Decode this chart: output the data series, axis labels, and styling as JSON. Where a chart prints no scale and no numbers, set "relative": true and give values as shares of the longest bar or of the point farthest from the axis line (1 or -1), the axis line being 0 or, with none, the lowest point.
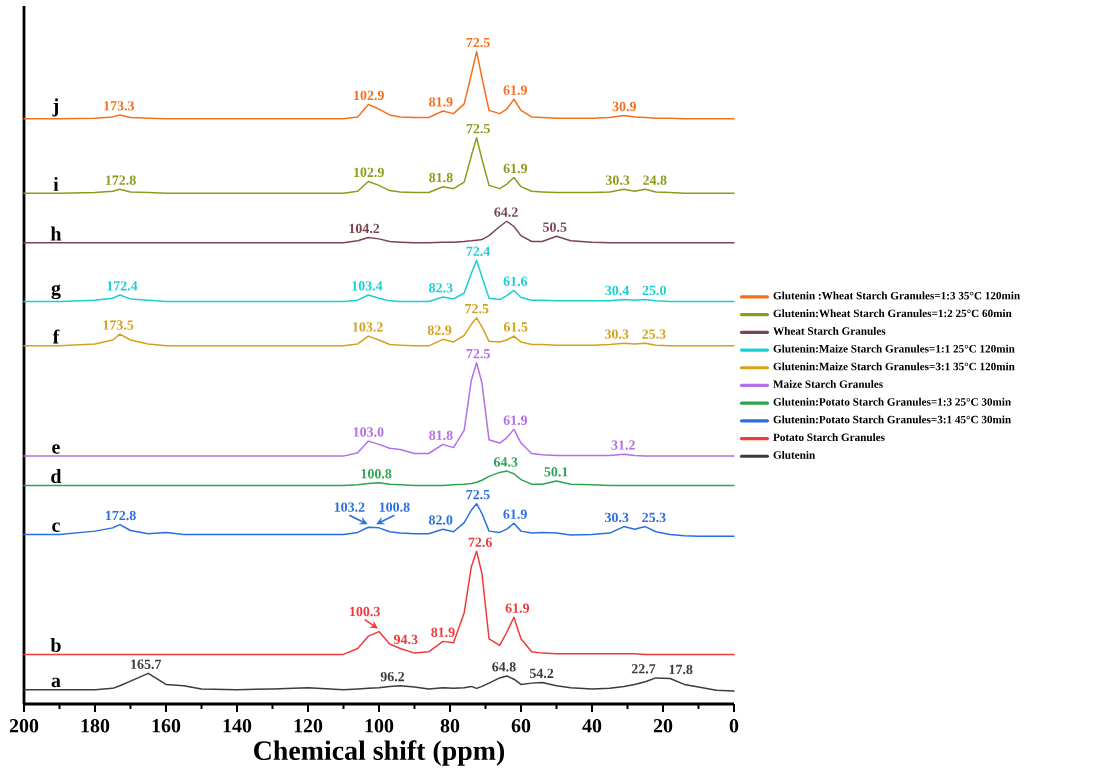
{
  "chart_data": {
    "type": "line",
    "relative": true,
    "tick_labels": "x",
    "legend": "right",
    "xlabel": "Chemical shift (ppm)",
    "xlim": [
      200,
      0
    ],
    "xticks": [
      200,
      180,
      160,
      140,
      120,
      100,
      80,
      60,
      40,
      20,
      0
    ],
    "x": [
      200,
      190,
      180,
      175,
      173,
      170,
      165,
      160,
      155,
      150,
      140,
      130,
      120,
      110,
      106,
      103,
      100,
      97,
      94,
      90,
      86,
      82,
      79,
      76,
      74,
      72.5,
      71,
      69,
      66,
      64,
      62,
      60,
      57,
      54,
      50,
      46,
      40,
      35,
      31,
      28,
      25,
      22,
      18,
      14,
      10,
      5,
      0
    ],
    "series": [
      {
        "name": "Glutenin :Wheat Starch Granules=1:3 35°C 120min",
        "color": "#f5701e",
        "values": [
          0.897,
          0.897,
          0.898,
          0.9,
          0.903,
          0.899,
          0.898,
          0.897,
          0.897,
          0.897,
          0.897,
          0.897,
          0.897,
          0.897,
          0.9,
          0.919,
          0.912,
          0.903,
          0.9,
          0.899,
          0.899,
          0.909,
          0.905,
          0.92,
          0.965,
          1.0,
          0.96,
          0.91,
          0.905,
          0.912,
          0.927,
          0.91,
          0.9,
          0.899,
          0.898,
          0.898,
          0.898,
          0.899,
          0.902,
          0.9,
          0.899,
          0.898,
          0.898,
          0.897,
          0.897,
          0.897,
          0.897
        ]
      },
      {
        "name": "Glutenin:Wheat Starch Granules=1:2 25°C  60min",
        "color": "#8f9a1c",
        "values": [
          0.783,
          0.783,
          0.784,
          0.786,
          0.789,
          0.785,
          0.784,
          0.783,
          0.783,
          0.783,
          0.783,
          0.783,
          0.783,
          0.783,
          0.786,
          0.801,
          0.795,
          0.787,
          0.785,
          0.784,
          0.784,
          0.793,
          0.79,
          0.8,
          0.84,
          0.868,
          0.835,
          0.795,
          0.79,
          0.797,
          0.807,
          0.793,
          0.786,
          0.785,
          0.784,
          0.784,
          0.784,
          0.785,
          0.789,
          0.786,
          0.789,
          0.785,
          0.784,
          0.783,
          0.783,
          0.783,
          0.783
        ]
      },
      {
        "name": "Wheat Starch Granules",
        "color": "#7a4450",
        "values": [
          0.707,
          0.707,
          0.707,
          0.707,
          0.707,
          0.707,
          0.707,
          0.707,
          0.707,
          0.707,
          0.707,
          0.707,
          0.707,
          0.707,
          0.71,
          0.715,
          0.713,
          0.709,
          0.708,
          0.707,
          0.707,
          0.708,
          0.708,
          0.709,
          0.71,
          0.711,
          0.712,
          0.718,
          0.732,
          0.74,
          0.732,
          0.718,
          0.709,
          0.709,
          0.717,
          0.71,
          0.708,
          0.707,
          0.707,
          0.707,
          0.707,
          0.707,
          0.707,
          0.707,
          0.707,
          0.707,
          0.707
        ]
      },
      {
        "name": "Glutenin:Maize Starch Granules=1:1 25°C  120min",
        "color": "#18cfd2",
        "values": [
          0.617,
          0.617,
          0.619,
          0.622,
          0.627,
          0.621,
          0.619,
          0.617,
          0.617,
          0.617,
          0.617,
          0.617,
          0.617,
          0.617,
          0.619,
          0.627,
          0.622,
          0.618,
          0.617,
          0.617,
          0.617,
          0.624,
          0.621,
          0.63,
          0.66,
          0.68,
          0.655,
          0.622,
          0.62,
          0.626,
          0.634,
          0.623,
          0.619,
          0.619,
          0.618,
          0.618,
          0.618,
          0.618,
          0.62,
          0.619,
          0.62,
          0.618,
          0.617,
          0.617,
          0.617,
          0.617,
          0.617
        ]
      },
      {
        "name": "Glutenin:Maize Starch Granules=3:1 35°C  120min",
        "color": "#d4a21a",
        "values": [
          0.549,
          0.549,
          0.552,
          0.558,
          0.567,
          0.558,
          0.552,
          0.549,
          0.549,
          0.549,
          0.549,
          0.549,
          0.549,
          0.549,
          0.552,
          0.564,
          0.558,
          0.551,
          0.55,
          0.549,
          0.549,
          0.559,
          0.555,
          0.565,
          0.582,
          0.592,
          0.578,
          0.556,
          0.555,
          0.558,
          0.564,
          0.555,
          0.551,
          0.551,
          0.55,
          0.55,
          0.55,
          0.551,
          0.553,
          0.552,
          0.553,
          0.55,
          0.549,
          0.549,
          0.549,
          0.549,
          0.549
        ]
      },
      {
        "name": "Maize Starch Granules",
        "color": "#b36ee8",
        "values": [
          0.38,
          0.38,
          0.38,
          0.38,
          0.38,
          0.38,
          0.38,
          0.38,
          0.38,
          0.38,
          0.38,
          0.38,
          0.38,
          0.38,
          0.385,
          0.403,
          0.398,
          0.392,
          0.39,
          0.384,
          0.384,
          0.398,
          0.393,
          0.42,
          0.496,
          0.523,
          0.492,
          0.405,
          0.4,
          0.408,
          0.421,
          0.4,
          0.384,
          0.382,
          0.381,
          0.381,
          0.381,
          0.381,
          0.383,
          0.381,
          0.38,
          0.38,
          0.38,
          0.38,
          0.38,
          0.38,
          0.38
        ]
      },
      {
        "name": "Glutenin:Potato Starch Granules=1:3 25°C 30min",
        "color": "#2ea44f",
        "values": [
          0.335,
          0.335,
          0.335,
          0.335,
          0.335,
          0.335,
          0.335,
          0.335,
          0.335,
          0.335,
          0.335,
          0.335,
          0.335,
          0.335,
          0.336,
          0.338,
          0.339,
          0.337,
          0.336,
          0.335,
          0.335,
          0.335,
          0.336,
          0.337,
          0.338,
          0.34,
          0.343,
          0.349,
          0.355,
          0.357,
          0.353,
          0.344,
          0.337,
          0.337,
          0.342,
          0.337,
          0.336,
          0.335,
          0.335,
          0.335,
          0.335,
          0.335,
          0.335,
          0.335,
          0.335,
          0.335,
          0.335
        ]
      },
      {
        "name": "Glutenin:Potato Starch Granules=3:1 45°C 30min",
        "color": "#2a6fe0",
        "values": [
          0.26,
          0.26,
          0.265,
          0.27,
          0.275,
          0.266,
          0.261,
          0.263,
          0.26,
          0.26,
          0.26,
          0.26,
          0.26,
          0.26,
          0.263,
          0.271,
          0.27,
          0.264,
          0.262,
          0.261,
          0.261,
          0.268,
          0.264,
          0.278,
          0.297,
          0.307,
          0.292,
          0.265,
          0.263,
          0.268,
          0.277,
          0.265,
          0.262,
          0.263,
          0.262,
          0.259,
          0.26,
          0.262,
          0.272,
          0.268,
          0.272,
          0.264,
          0.26,
          0.258,
          0.257,
          0.257,
          0.257
        ]
      },
      {
        "name": "Potato Starch Granules",
        "color": "#f03a3a",
        "values": [
          0.076,
          0.076,
          0.076,
          0.076,
          0.076,
          0.076,
          0.076,
          0.076,
          0.076,
          0.076,
          0.076,
          0.076,
          0.076,
          0.076,
          0.085,
          0.104,
          0.111,
          0.092,
          0.085,
          0.078,
          0.08,
          0.096,
          0.094,
          0.14,
          0.21,
          0.234,
          0.2,
          0.1,
          0.09,
          0.11,
          0.133,
          0.1,
          0.08,
          0.078,
          0.077,
          0.077,
          0.077,
          0.077,
          0.077,
          0.077,
          0.076,
          0.076,
          0.076,
          0.076,
          0.076,
          0.076,
          0.076
        ]
      },
      {
        "name": "Glutenin",
        "color": "#3c3c3c",
        "values": [
          0.022,
          0.022,
          0.022,
          0.024,
          0.028,
          0.035,
          0.047,
          0.03,
          0.028,
          0.023,
          0.022,
          0.023,
          0.025,
          0.022,
          0.023,
          0.024,
          0.025,
          0.027,
          0.028,
          0.026,
          0.023,
          0.025,
          0.024,
          0.025,
          0.027,
          0.024,
          0.027,
          0.032,
          0.04,
          0.043,
          0.038,
          0.03,
          0.032,
          0.033,
          0.028,
          0.025,
          0.023,
          0.024,
          0.027,
          0.03,
          0.034,
          0.04,
          0.039,
          0.03,
          0.026,
          0.021,
          0.02
        ]
      }
    ],
    "annotations": [
      {
        "text": "j",
        "x": 191,
        "y": 0.897
      },
      {
        "text": "i",
        "x": 191,
        "y": 0.783
      },
      {
        "text": "h",
        "x": 191,
        "y": 0.707
      },
      {
        "text": "g",
        "x": 191,
        "y": 0.617
      },
      {
        "text": "f",
        "x": 191,
        "y": 0.549
      },
      {
        "text": "e",
        "x": 191,
        "y": 0.38
      },
      {
        "text": "d",
        "x": 191,
        "y": 0.335
      },
      {
        "text": "c",
        "x": 191,
        "y": 0.26
      },
      {
        "text": "b",
        "x": 191,
        "y": 0.076
      },
      {
        "text": "a",
        "x": 191,
        "y": 0.022
      },
      {
        "text": "173.3",
        "x": 173.3,
        "y": 0.903
      },
      {
        "text": "102.9",
        "x": 102.9,
        "y": 0.919
      },
      {
        "text": "81.9",
        "x": 81.9,
        "y": 0.909
      },
      {
        "text": "72.5",
        "x": 72.5,
        "y": 1.0
      },
      {
        "text": "61.9",
        "x": 61.9,
        "y": 0.927
      },
      {
        "text": "30.9",
        "x": 30.9,
        "y": 0.902
      },
      {
        "text": "172.8",
        "x": 172.8,
        "y": 0.789
      },
      {
        "text": "102.9",
        "x": 102.9,
        "y": 0.801
      },
      {
        "text": "81.8",
        "x": 81.8,
        "y": 0.793
      },
      {
        "text": "72.5",
        "x": 72.5,
        "y": 0.868
      },
      {
        "text": "61.9",
        "x": 61.9,
        "y": 0.807
      },
      {
        "text": "30.3",
        "x": 30.3,
        "y": 0.789
      },
      {
        "text": "24.8",
        "x": 24.8,
        "y": 0.789
      },
      {
        "text": "104.2",
        "x": 104.2,
        "y": 0.715
      },
      {
        "text": "64.2",
        "x": 64.2,
        "y": 0.74
      },
      {
        "text": "50.5",
        "x": 50.5,
        "y": 0.717
      },
      {
        "text": "172.4",
        "x": 172.4,
        "y": 0.627
      },
      {
        "text": "103.4",
        "x": 103.4,
        "y": 0.627
      },
      {
        "text": "82.3",
        "x": 82.3,
        "y": 0.624
      },
      {
        "text": "72.4",
        "x": 72.4,
        "y": 0.68
      },
      {
        "text": "61.6",
        "x": 61.6,
        "y": 0.634
      },
      {
        "text": "30.4",
        "x": 30.4,
        "y": 0.62
      },
      {
        "text": "25.0",
        "x": 25.0,
        "y": 0.62
      },
      {
        "text": "173.5",
        "x": 173.5,
        "y": 0.567
      },
      {
        "text": "103.2",
        "x": 103.2,
        "y": 0.564
      },
      {
        "text": "82.9",
        "x": 82.9,
        "y": 0.559
      },
      {
        "text": "72.5",
        "x": 72.5,
        "y": 0.592
      },
      {
        "text": "61.5",
        "x": 61.5,
        "y": 0.564
      },
      {
        "text": "30.3",
        "x": 30.3,
        "y": 0.553
      },
      {
        "text": "25.3",
        "x": 25.3,
        "y": 0.553
      },
      {
        "text": "103.0",
        "x": 103.0,
        "y": 0.403
      },
      {
        "text": "81.8",
        "x": 81.8,
        "y": 0.398
      },
      {
        "text": "72.5",
        "x": 72.5,
        "y": 0.523
      },
      {
        "text": "61.9",
        "x": 61.9,
        "y": 0.421
      },
      {
        "text": "31.2",
        "x": 31.2,
        "y": 0.383
      },
      {
        "text": "100.8",
        "x": 100.8,
        "y": 0.339
      },
      {
        "text": "64.3",
        "x": 64.3,
        "y": 0.357
      },
      {
        "text": "50.1",
        "x": 50.1,
        "y": 0.342
      },
      {
        "text": "172.8",
        "x": 172.8,
        "y": 0.275
      },
      {
        "text": "103.2",
        "x": 103.2,
        "y": 0.271
      },
      {
        "text": "100.8",
        "x": 100.8,
        "y": 0.271
      },
      {
        "text": "82.0",
        "x": 82.0,
        "y": 0.268
      },
      {
        "text": "72.5",
        "x": 72.5,
        "y": 0.307
      },
      {
        "text": "61.9",
        "x": 61.9,
        "y": 0.277
      },
      {
        "text": "30.3",
        "x": 30.3,
        "y": 0.272
      },
      {
        "text": "25.3",
        "x": 25.3,
        "y": 0.272
      },
      {
        "text": "100.3",
        "x": 100.3,
        "y": 0.111
      },
      {
        "text": "94.3",
        "x": 94.3,
        "y": 0.085
      },
      {
        "text": "81.9",
        "x": 81.9,
        "y": 0.096
      },
      {
        "text": "72.6",
        "x": 72.6,
        "y": 0.234
      },
      {
        "text": "61.9",
        "x": 61.9,
        "y": 0.133
      },
      {
        "text": "165.7",
        "x": 165.7,
        "y": 0.047
      },
      {
        "text": "96.2",
        "x": 96.2,
        "y": 0.028
      },
      {
        "text": "64.8",
        "x": 64.8,
        "y": 0.043
      },
      {
        "text": "54.2",
        "x": 54.2,
        "y": 0.033
      },
      {
        "text": "22.7",
        "x": 22.7,
        "y": 0.04
      },
      {
        "text": "17.8",
        "x": 17.8,
        "y": 0.039
      }
    ]
  }
}
